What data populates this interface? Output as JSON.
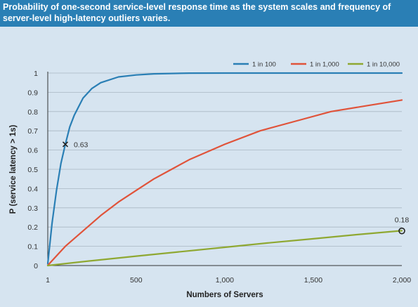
{
  "chart_data": {
    "type": "line",
    "title": "Probability of one-second service-level response time as the system scales and frequency of server-level high-latency outliers varies.",
    "xlabel": "Numbers of Servers",
    "ylabel": "P (service latency > 1s)",
    "xlim": [
      1,
      2000
    ],
    "ylim": [
      0,
      1
    ],
    "xticks": [
      1,
      500,
      1000,
      1500,
      2000
    ],
    "xtick_labels": [
      "1",
      "500",
      "1,000",
      "1,500",
      "2,000"
    ],
    "yticks": [
      0,
      0.1,
      0.2,
      0.3,
      0.4,
      0.5,
      0.6,
      0.7,
      0.8,
      0.9,
      1
    ],
    "ytick_labels": [
      "0",
      "0.1",
      "0.2",
      "0.3",
      "0.4",
      "0.5",
      "0.6",
      "0.7",
      "0.8",
      "0.9",
      "1"
    ],
    "grid": true,
    "legend_position": "top-right",
    "series": [
      {
        "name": "1 in 100",
        "color": "#2a7fb5",
        "x": [
          1,
          25,
          50,
          75,
          100,
          125,
          150,
          200,
          250,
          300,
          400,
          500,
          600,
          800,
          1000,
          1500,
          2000
        ],
        "y": [
          0.01,
          0.22,
          0.39,
          0.53,
          0.63,
          0.72,
          0.78,
          0.87,
          0.92,
          0.95,
          0.98,
          0.99,
          0.996,
          0.9997,
          1.0,
          1.0,
          1.0
        ]
      },
      {
        "name": "1 in 1,000",
        "color": "#e0533a",
        "x": [
          1,
          50,
          100,
          200,
          300,
          400,
          500,
          600,
          700,
          800,
          1000,
          1200,
          1400,
          1600,
          1800,
          2000
        ],
        "y": [
          0.001,
          0.05,
          0.1,
          0.18,
          0.26,
          0.33,
          0.39,
          0.45,
          0.5,
          0.55,
          0.63,
          0.7,
          0.75,
          0.8,
          0.83,
          0.86
        ]
      },
      {
        "name": "1 in 10,000",
        "color": "#8fa832",
        "x": [
          1,
          250,
          500,
          750,
          1000,
          1250,
          1500,
          1750,
          2000
        ],
        "y": [
          0.0001,
          0.025,
          0.049,
          0.072,
          0.095,
          0.118,
          0.139,
          0.161,
          0.181
        ]
      }
    ],
    "annotations": [
      {
        "label": "0.63",
        "x": 100,
        "y": 0.63,
        "marker": "x"
      },
      {
        "label": "0.18",
        "x": 2000,
        "y": 0.18,
        "marker": "circle"
      }
    ]
  }
}
